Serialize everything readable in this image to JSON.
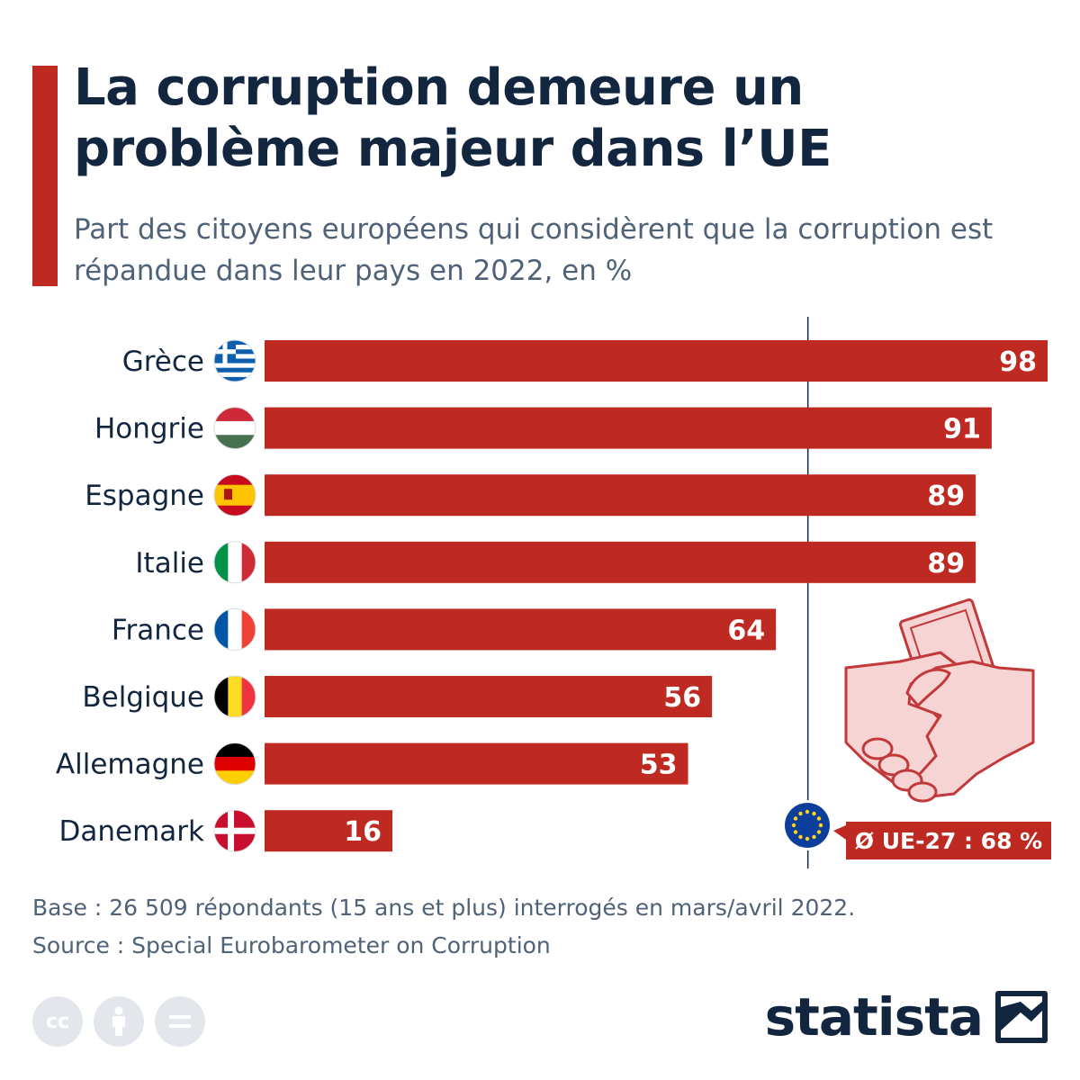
{
  "header": {
    "title": "La corruption demeure un problème majeur dans l’UE",
    "subtitle": "Part des citoyens européens qui considèrent que la corruption est répandue dans leur pays en 2022, en %"
  },
  "chart_data": {
    "type": "bar",
    "orientation": "horizontal",
    "title": "La corruption demeure un problème majeur dans l’UE",
    "subtitle": "Part des citoyens européens qui considèrent que la corruption est répandue dans leur pays en 2022, en %",
    "categories": [
      "Grèce",
      "Hongrie",
      "Espagne",
      "Italie",
      "France",
      "Belgique",
      "Allemagne",
      "Danemark"
    ],
    "values": [
      98,
      91,
      89,
      89,
      64,
      56,
      53,
      16
    ],
    "value_labels": [
      "98",
      "91",
      "89",
      "89",
      "64",
      "56",
      "53",
      "16"
    ],
    "xlim": [
      0,
      98
    ],
    "grid": false,
    "legend": "none",
    "bar_color": "#be2a21",
    "reference_line": {
      "value": 68,
      "label": "Ø UE-27 : 68 %"
    },
    "flags": [
      "greece-flag-icon",
      "hungary-flag-icon",
      "spain-flag-icon",
      "italy-flag-icon",
      "france-flag-icon",
      "belgium-flag-icon",
      "germany-flag-icon",
      "denmark-flag-icon"
    ]
  },
  "footer": {
    "base": "Base : 26 509 répondants (15 ans et plus) interrogés en mars/avril 2022.",
    "source": "Source : Special Eurobarometer on Corruption",
    "brand": "statista",
    "icons": [
      "creative-commons-icon",
      "attribution-icon",
      "no-derivatives-icon"
    ]
  },
  "colors": {
    "accent": "#be2a21",
    "title": "#13263f",
    "subtitle": "#4f6277",
    "illustration": "#f7d4d4"
  }
}
